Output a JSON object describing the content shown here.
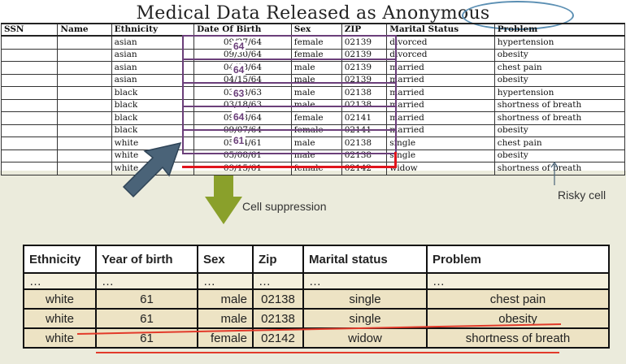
{
  "title": "Medical Data Released as Anonymous",
  "original_table": {
    "headers": [
      "SSN",
      "Name",
      "Ethnicity",
      "Date Of Birth",
      "Sex",
      "ZIP",
      "Marital Status",
      "Problem"
    ],
    "rows": [
      [
        "",
        "",
        "asian",
        "09/27/64",
        "female",
        "02139",
        "divorced",
        "hypertension"
      ],
      [
        "",
        "",
        "asian",
        "09/30/64",
        "female",
        "02139",
        "divorced",
        "obesity"
      ],
      [
        "",
        "",
        "asian",
        "04/18/64",
        "male",
        "02139",
        "married",
        "chest pain"
      ],
      [
        "",
        "",
        "asian",
        "04/15/64",
        "male",
        "02139",
        "married",
        "obesity"
      ],
      [
        "",
        "",
        "black",
        "03/13/63",
        "male",
        "02138",
        "married",
        "hypertension"
      ],
      [
        "",
        "",
        "black",
        "03/18/63",
        "male",
        "02138",
        "married",
        "shortness of breath"
      ],
      [
        "",
        "",
        "black",
        "09/13/64",
        "female",
        "02141",
        "married",
        "shortness of breath"
      ],
      [
        "",
        "",
        "black",
        "09/07/64",
        "female",
        "02141",
        "married",
        "obesity"
      ],
      [
        "",
        "",
        "white",
        "05/14/61",
        "male",
        "02138",
        "single",
        "chest pain"
      ],
      [
        "",
        "",
        "white",
        "05/08/61",
        "male",
        "02138",
        "single",
        "obesity"
      ],
      [
        "",
        "",
        "white",
        "09/15/61",
        "female",
        "02142",
        "widow",
        "shortness of breath"
      ]
    ]
  },
  "group_ages": [
    "64",
    "64",
    "63",
    "64",
    "61"
  ],
  "labels": {
    "risky_cell": "Risky cell",
    "cell_suppression": "Cell suppression"
  },
  "suppressed_table": {
    "headers": [
      "Ethnicity",
      "Year of birth",
      "Sex",
      "Zip",
      "Marital status",
      "Problem"
    ],
    "ellipsis_row": [
      "…",
      "…",
      "…",
      "…",
      "…",
      "…"
    ],
    "rows": [
      [
        "white",
        "61",
        "male",
        "02138",
        "single",
        "chest pain"
      ],
      [
        "white",
        "61",
        "male",
        "02138",
        "single",
        "obesity"
      ],
      [
        "white",
        "61",
        "female",
        "02142",
        "widow",
        "shortness of breath"
      ]
    ]
  },
  "colors": {
    "group_box": "#6b3f7a",
    "risky_highlight": "#e0141c",
    "title_ellipse": "#5b8fb3",
    "suppression_arrow": "#8aa02b",
    "pointer_arrow": "#4a6378",
    "bottom_panel": "#ebebdc",
    "cell_fill": "#ede3c4"
  }
}
